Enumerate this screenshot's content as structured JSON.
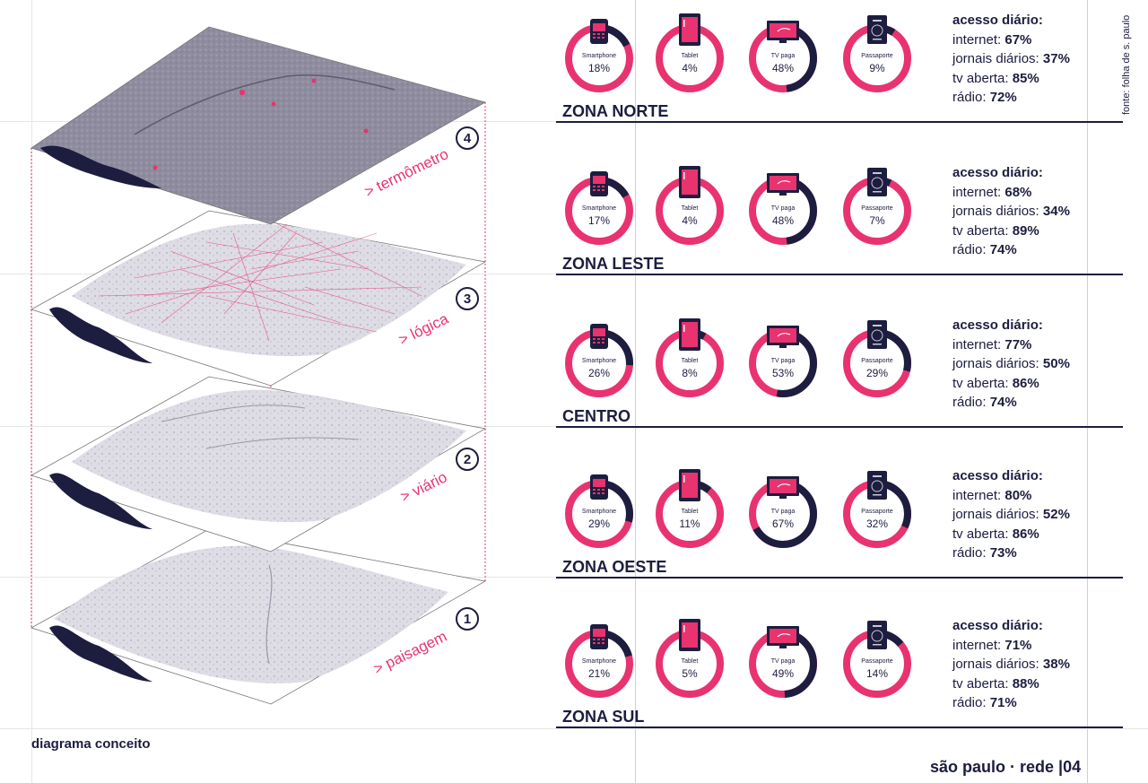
{
  "caption": "diagrama conceito",
  "footer": "são paulo · rede |04",
  "source": "fonte: folha de s. paulo",
  "colors": {
    "accent": "#e8336f",
    "navy": "#1c1d3f",
    "map_dark": "#8d8b9c",
    "map_light": "#c9c7d3"
  },
  "layers": [
    {
      "number": "4",
      "label": "> termômetro"
    },
    {
      "number": "3",
      "label": "> lógica"
    },
    {
      "number": "2",
      "label": "> viário"
    },
    {
      "number": "1",
      "label": "> paisagem"
    }
  ],
  "device_labels": [
    "Smartphone",
    "Tablet",
    "TV paga",
    "Passaporte"
  ],
  "device_icons": [
    "smartphone-icon",
    "tablet-icon",
    "tv-icon",
    "passport-icon"
  ],
  "access_heading": "acesso diário:",
  "access_keys": [
    "internet:",
    "jornais diários:",
    "tv aberta:",
    "rádio:"
  ],
  "zones": [
    {
      "name": "ZONA NORTE",
      "devices": [
        18,
        4,
        48,
        9
      ],
      "device_text": [
        "18%",
        "4%",
        "48%",
        "9%"
      ],
      "access": [
        "67%",
        "37%",
        "85%",
        "72%"
      ]
    },
    {
      "name": "ZONA LESTE",
      "devices": [
        17,
        4,
        48,
        7
      ],
      "device_text": [
        "17%",
        "4%",
        "48%",
        "7%"
      ],
      "access": [
        "68%",
        "34%",
        "89%",
        "74%"
      ]
    },
    {
      "name": "CENTRO",
      "devices": [
        26,
        8,
        53,
        29
      ],
      "device_text": [
        "26%",
        "8%",
        "53%",
        "29%"
      ],
      "access": [
        "77%",
        "50%",
        "86%",
        "74%"
      ]
    },
    {
      "name": "ZONA OESTE",
      "devices": [
        29,
        11,
        67,
        32
      ],
      "device_text": [
        "29%",
        "11%",
        "67%",
        "32%"
      ],
      "access": [
        "80%",
        "52%",
        "86%",
        "73%"
      ]
    },
    {
      "name": "ZONA SUL",
      "devices": [
        21,
        5,
        49,
        14
      ],
      "device_text": [
        "21%",
        "5%",
        "49%",
        "14%"
      ],
      "access": [
        "71%",
        "38%",
        "88%",
        "71%"
      ]
    }
  ]
}
